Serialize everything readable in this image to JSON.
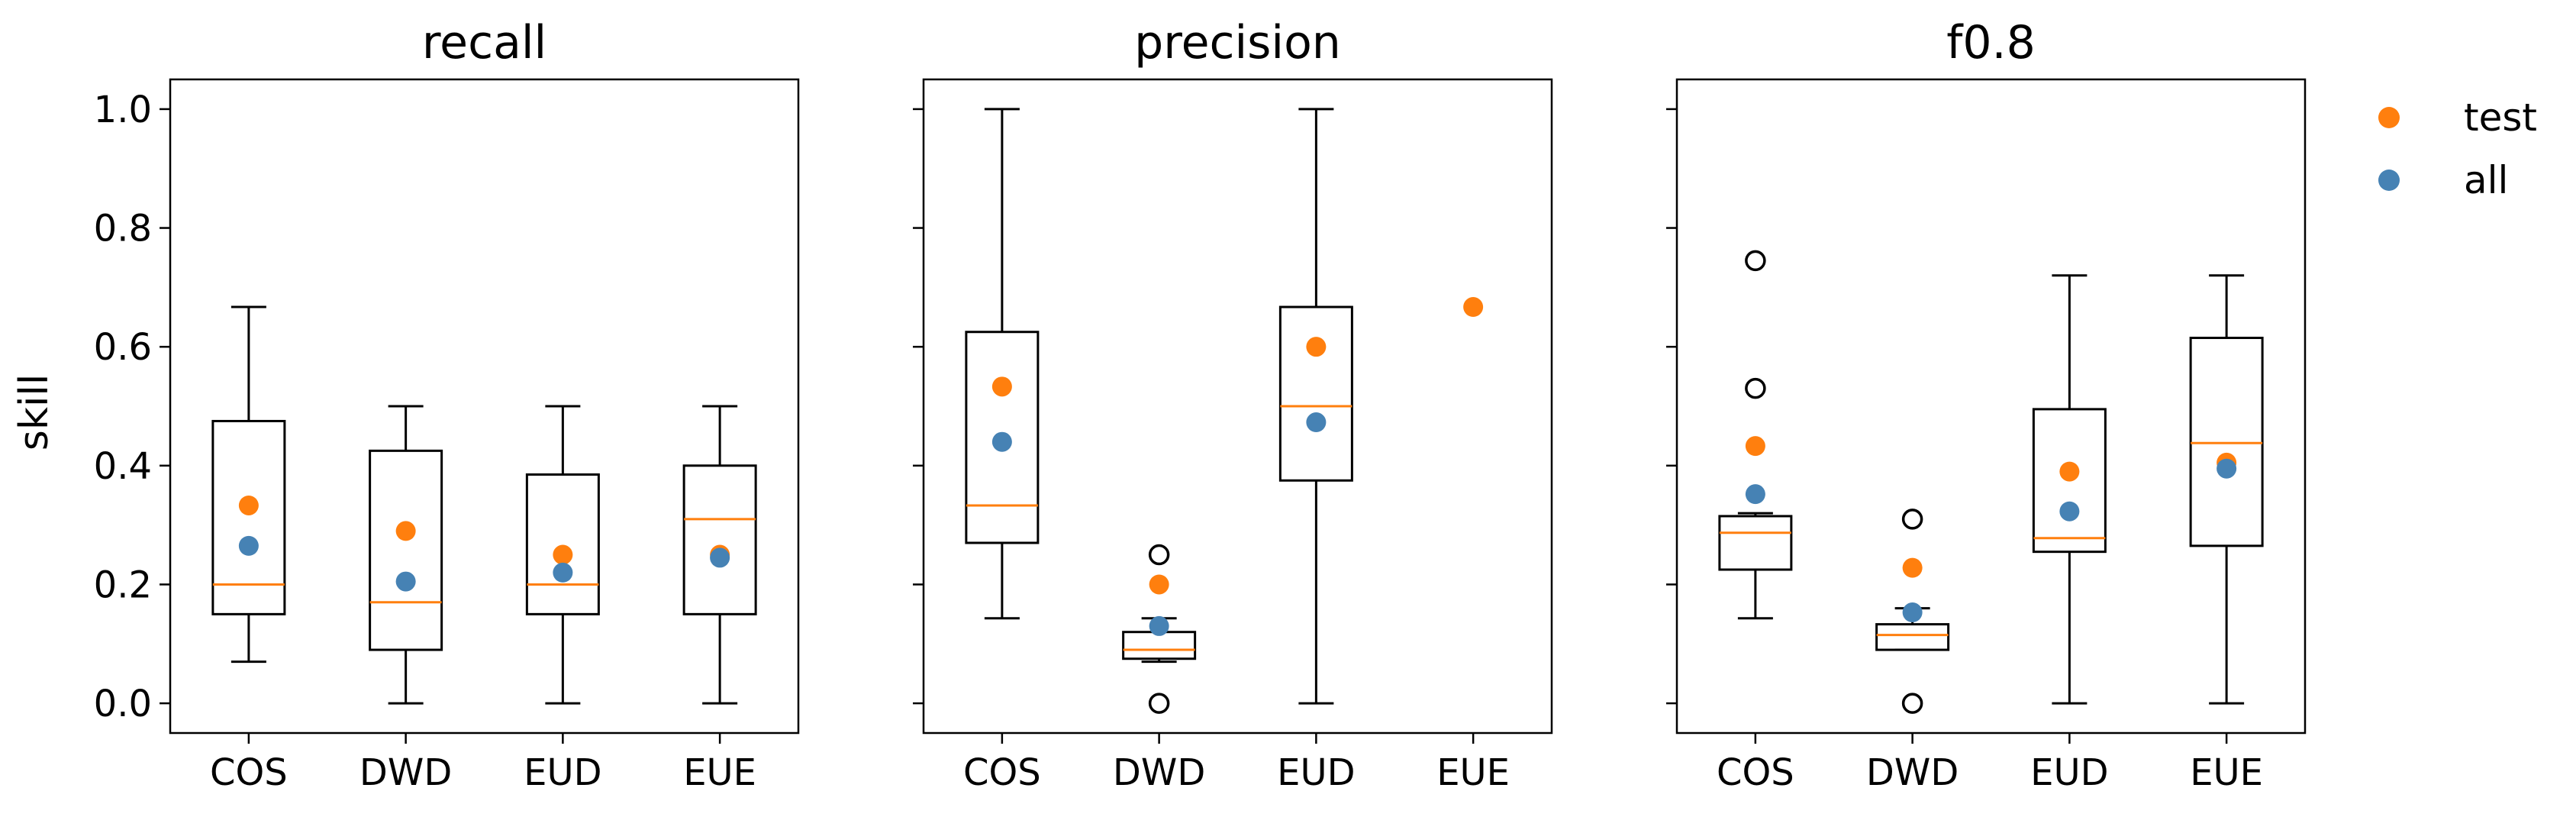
{
  "chart_data": {
    "type": "box",
    "ylabel": "skill",
    "ylim": [
      -0.05,
      1.05
    ],
    "yticks": [
      0.0,
      0.2,
      0.4,
      0.6,
      0.8,
      1.0
    ],
    "ytick_labels": [
      "0.0",
      "0.2",
      "0.4",
      "0.6",
      "0.8",
      "1.0"
    ],
    "colors": {
      "test": "#ff7f0e",
      "all": "#4682b4",
      "median": "#ff7f0e",
      "box": "#000000"
    },
    "legend": {
      "position": "right",
      "entries": [
        {
          "key": "test",
          "label": "test"
        },
        {
          "key": "all",
          "label": "all"
        }
      ]
    },
    "panels": [
      {
        "title": "recall",
        "categories": [
          "COS",
          "DWD",
          "EUD",
          "EUE"
        ],
        "boxes": [
          {
            "whislo": 0.07,
            "q1": 0.15,
            "med": 0.2,
            "q3": 0.475,
            "whishi": 0.667,
            "fliers": []
          },
          {
            "whislo": 0.0,
            "q1": 0.09,
            "med": 0.17,
            "q3": 0.425,
            "whishi": 0.5,
            "fliers": []
          },
          {
            "whislo": 0.0,
            "q1": 0.15,
            "med": 0.2,
            "q3": 0.385,
            "whishi": 0.5,
            "fliers": []
          },
          {
            "whislo": 0.0,
            "q1": 0.15,
            "med": 0.31,
            "q3": 0.4,
            "whishi": 0.5,
            "fliers": []
          }
        ],
        "test": [
          0.333,
          0.29,
          0.25,
          0.25
        ],
        "all": [
          0.265,
          0.205,
          0.22,
          0.245
        ]
      },
      {
        "title": "precision",
        "categories": [
          "COS",
          "DWD",
          "EUD",
          "EUE"
        ],
        "boxes": [
          {
            "whislo": 0.143,
            "q1": 0.27,
            "med": 0.333,
            "q3": 0.625,
            "whishi": 1.0,
            "fliers": []
          },
          {
            "whislo": 0.07,
            "q1": 0.075,
            "med": 0.09,
            "q3": 0.12,
            "whishi": 0.143,
            "fliers": [
              0.0,
              0.25
            ]
          },
          {
            "whislo": 0.0,
            "q1": 0.375,
            "med": 0.5,
            "q3": 0.667,
            "whishi": 1.0,
            "fliers": []
          },
          null
        ],
        "test": [
          0.533,
          0.2,
          0.6,
          0.667
        ],
        "all": [
          0.44,
          0.13,
          0.473,
          null
        ]
      },
      {
        "title": "f0.8",
        "categories": [
          "COS",
          "DWD",
          "EUD",
          "EUE"
        ],
        "boxes": [
          {
            "whislo": 0.143,
            "q1": 0.225,
            "med": 0.287,
            "q3": 0.315,
            "whishi": 0.32,
            "fliers": [
              0.53,
              0.745
            ]
          },
          {
            "whislo": 0.09,
            "q1": 0.09,
            "med": 0.115,
            "q3": 0.133,
            "whishi": 0.16,
            "fliers": [
              0.0,
              0.31
            ]
          },
          {
            "whislo": 0.0,
            "q1": 0.255,
            "med": 0.278,
            "q3": 0.495,
            "whishi": 0.72,
            "fliers": []
          },
          {
            "whislo": 0.0,
            "q1": 0.265,
            "med": 0.438,
            "q3": 0.615,
            "whishi": 0.72,
            "fliers": []
          }
        ],
        "test": [
          0.433,
          0.228,
          0.39,
          0.405
        ],
        "all": [
          0.352,
          0.153,
          0.323,
          0.395
        ]
      }
    ]
  }
}
